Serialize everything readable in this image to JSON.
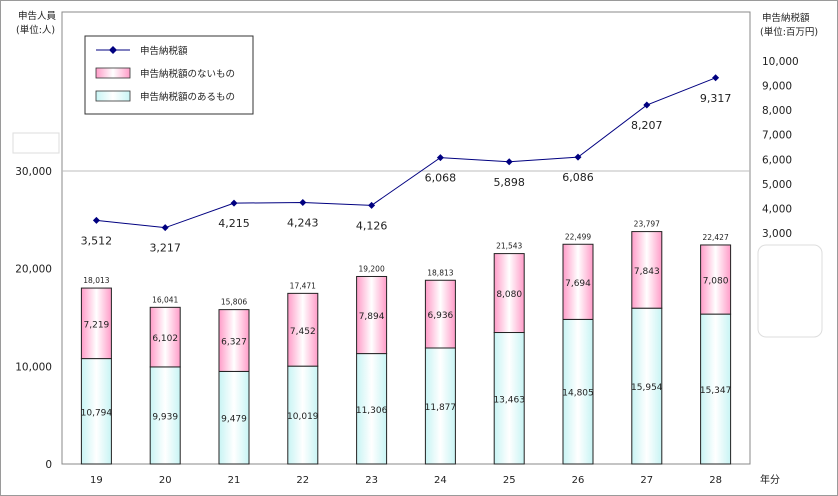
{
  "chart_data": {
    "type": "bar",
    "left_axis_title": [
      "申告人員",
      "(単位:人)"
    ],
    "right_axis_title": [
      "申告納税額",
      "(単位:百万円)"
    ],
    "xlabel": "年分",
    "categories": [
      "19",
      "20",
      "21",
      "22",
      "23",
      "24",
      "25",
      "26",
      "27",
      "28"
    ],
    "left_ylim": [
      0,
      30000
    ],
    "left_ticks": [
      "0",
      "10,000",
      "20,000",
      "30,000"
    ],
    "right_ylim": [
      3000,
      10000
    ],
    "right_ticks": [
      "3,000",
      "4,000",
      "5,000",
      "6,000",
      "7,000",
      "8,000",
      "9,000",
      "10,000"
    ],
    "stacked": true,
    "series": [
      {
        "name": "申告納税額のあるもの",
        "kind": "bar",
        "color": "#e6ffff",
        "values": [
          10794,
          9939,
          9479,
          10019,
          11306,
          11877,
          13463,
          14805,
          15954,
          15347
        ],
        "labels": [
          "10,794",
          "9,939",
          "9,479",
          "10,019",
          "11,306",
          "11,877",
          "13,463",
          "14,805",
          "15,954",
          "15,347"
        ]
      },
      {
        "name": "申告納税額のないもの",
        "kind": "bar",
        "color": "#ffd9ec",
        "values": [
          7219,
          6102,
          6327,
          7452,
          7894,
          6936,
          8080,
          7694,
          7843,
          7080
        ],
        "labels": [
          "7,219",
          "6,102",
          "6,327",
          "7,452",
          "7,894",
          "6,936",
          "8,080",
          "7,694",
          "7,843",
          "7,080"
        ]
      },
      {
        "name": "申告納税額",
        "kind": "line",
        "axis": "right",
        "color": "#000080",
        "values": [
          3512,
          3217,
          4215,
          4243,
          4126,
          6068,
          5898,
          6086,
          8207,
          9317
        ],
        "labels": [
          "3,512",
          "3,217",
          "4,215",
          "4,243",
          "4,126",
          "6,068",
          "5,898",
          "6,086",
          "8,207",
          "9,317"
        ]
      }
    ],
    "totals": [
      "18,013",
      "16,041",
      "15,806",
      "17,471",
      "19,200",
      "18,813",
      "21,543",
      "22,499",
      "23,797",
      "22,427"
    ],
    "legend_position": "top-left"
  }
}
